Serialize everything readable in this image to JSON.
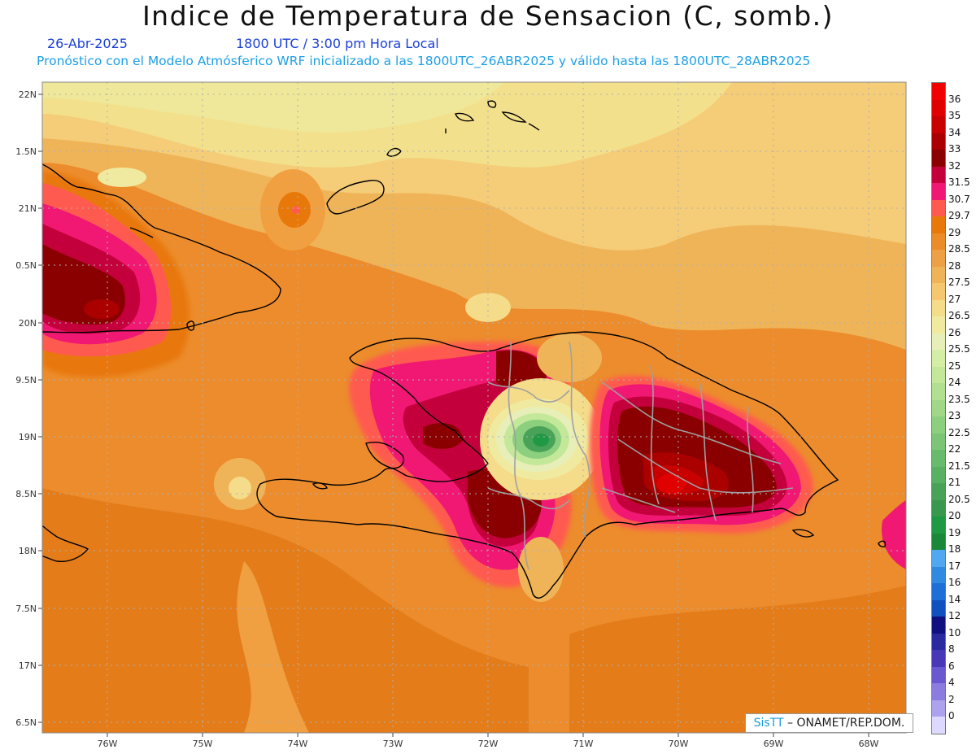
{
  "header": {
    "title": "Indice de Temperatura de Sensacion (C, somb.)",
    "date": "26-Abr-2025",
    "time": "1800 UTC / 3:00 pm Hora Local",
    "forecast": "Pronóstico con el Modelo Atmósferico WRF inicializado a las 1800UTC_26ABR2025 y válido hasta las  1800UTC_28ABR2025"
  },
  "axes": {
    "lat_labels": [
      "22N",
      "1.5N",
      "21N",
      "0.5N",
      "20N",
      "9.5N",
      "19N",
      "8.5N",
      "18N",
      "7.5N",
      "17N",
      "6.5N"
    ],
    "lon_labels": [
      "76W",
      "75W",
      "74W",
      "73W",
      "72W",
      "71W",
      "70W",
      "69W",
      "68W"
    ]
  },
  "legend": {
    "labels": [
      "36",
      "35",
      "34",
      "33",
      "32",
      "31.5",
      "30.7",
      "29.7",
      "29",
      "28.5",
      "28",
      "27.5",
      "27",
      "26.5",
      "26",
      "25.5",
      "25",
      "24",
      "23.5",
      "23",
      "22.5",
      "22",
      "21.5",
      "21",
      "20.5",
      "20",
      "19",
      "18",
      "17",
      "16",
      "14",
      "12",
      "10",
      "8",
      "6",
      "4",
      "2",
      "0"
    ],
    "colors": [
      "#f00000",
      "#e00000",
      "#c80000",
      "#aa0000",
      "#8a0000",
      "#c4003c",
      "#f01873",
      "#ff5a50",
      "#e8780a",
      "#ec8c28",
      "#eda046",
      "#f0b458",
      "#f5c870",
      "#f5dc8a",
      "#f0eaa0",
      "#e8eeb8",
      "#d4eea6",
      "#c4e89a",
      "#b0e090",
      "#a0d888",
      "#8ccf7e",
      "#7cc576",
      "#68bb6c",
      "#58b062",
      "#48a358",
      "#38984e",
      "#209944",
      "#1a8838",
      "#50a8f0",
      "#2f8ae0",
      "#1f6fd8",
      "#1050c0",
      "#101080",
      "#2a2aa0",
      "#4838b8",
      "#6a58d0",
      "#8c7ce0",
      "#ada2ee",
      "#ddd8ff"
    ]
  },
  "credit": {
    "brand": "SisTT",
    "text": " – ONAMET/REP.DOM."
  },
  "colors": {
    "subtitle": "#1a3fd6",
    "forecast_line": "#1ea0e6",
    "base_field": "#ec8c2c",
    "north_field": "#f0e49a"
  }
}
